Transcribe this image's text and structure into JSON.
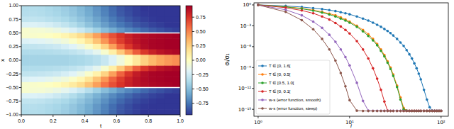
{
  "chart_data": [
    {
      "type": "heatmap",
      "xlabel": "t",
      "ylabel": "x",
      "xlim": [
        0,
        1
      ],
      "ylim": [
        -1,
        1
      ],
      "xticks": [
        {
          "value": 0,
          "label": "0.0"
        },
        {
          "value": 0.2,
          "label": "0.2"
        },
        {
          "value": 0.4,
          "label": "0.4"
        },
        {
          "value": 0.6,
          "label": "0.6"
        },
        {
          "value": 0.8,
          "label": "0.8"
        },
        {
          "value": 1,
          "label": "1.0"
        }
      ],
      "yticks": [
        {
          "value": -1,
          "label": "−1.00"
        },
        {
          "value": -0.75,
          "label": "−0.75"
        },
        {
          "value": -0.5,
          "label": "−0.50"
        },
        {
          "value": -0.25,
          "label": "−0.25"
        },
        {
          "value": 0,
          "label": "0.00"
        },
        {
          "value": 0.25,
          "label": "0.25"
        },
        {
          "value": 0.5,
          "label": "0.50"
        },
        {
          "value": 0.75,
          "label": "0.75"
        },
        {
          "value": 1,
          "label": "1.00"
        }
      ],
      "x": [
        0.025,
        0.075,
        0.125,
        0.175,
        0.225,
        0.275,
        0.325,
        0.375,
        0.425,
        0.475,
        0.525,
        0.575,
        0.625,
        0.675,
        0.725,
        0.775,
        0.825,
        0.875,
        0.925,
        0.975
      ],
      "y": [
        0.95,
        0.85,
        0.75,
        0.65,
        0.55,
        0.45,
        0.35,
        0.25,
        0.15,
        0.05,
        -0.05,
        -0.15,
        -0.25,
        -0.35,
        -0.45,
        -0.55,
        -0.65,
        -0.75,
        -0.85,
        -0.95
      ],
      "cells": [
        [
          -0.35,
          -0.35,
          -0.36,
          -0.38,
          -0.4,
          -0.43,
          -0.47,
          -0.52,
          -0.58,
          -0.65,
          -0.72,
          -0.79,
          -0.85,
          -0.89,
          -0.92,
          -0.95,
          -0.97,
          -0.98,
          -0.99,
          -1.0
        ],
        [
          -0.34,
          -0.34,
          -0.35,
          -0.37,
          -0.39,
          -0.42,
          -0.46,
          -0.51,
          -0.57,
          -0.64,
          -0.71,
          -0.78,
          -0.84,
          -0.88,
          -0.92,
          -0.94,
          -0.96,
          -0.98,
          -0.99,
          -0.99
        ],
        [
          -0.3,
          -0.3,
          -0.31,
          -0.33,
          -0.35,
          -0.38,
          -0.42,
          -0.47,
          -0.53,
          -0.6,
          -0.67,
          -0.74,
          -0.8,
          -0.85,
          -0.89,
          -0.92,
          -0.94,
          -0.96,
          -0.97,
          -0.98
        ],
        [
          -0.2,
          -0.2,
          -0.21,
          -0.23,
          -0.26,
          -0.3,
          -0.35,
          -0.41,
          -0.48,
          -0.55,
          -0.62,
          -0.69,
          -0.75,
          -0.8,
          -0.85,
          -0.88,
          -0.91,
          -0.93,
          -0.95,
          -0.96
        ],
        [
          -0.05,
          -0.06,
          -0.07,
          -0.09,
          -0.12,
          -0.16,
          -0.21,
          -0.27,
          -0.34,
          -0.42,
          -0.5,
          -0.57,
          -0.64,
          -0.7,
          -0.75,
          -0.8,
          -0.84,
          -0.87,
          -0.9,
          -0.92
        ],
        [
          -0.05,
          -0.04,
          -0.03,
          -0.01,
          0.02,
          0.06,
          0.12,
          0.2,
          0.3,
          0.42,
          0.55,
          0.66,
          0.75,
          0.82,
          0.87,
          0.9,
          0.92,
          0.93,
          0.94,
          0.95
        ],
        [
          -0.2,
          -0.19,
          -0.18,
          -0.16,
          -0.13,
          -0.09,
          -0.03,
          0.05,
          0.16,
          0.3,
          0.45,
          0.6,
          0.72,
          0.81,
          0.87,
          0.91,
          0.93,
          0.94,
          0.95,
          0.96
        ],
        [
          -0.3,
          -0.3,
          -0.29,
          -0.28,
          -0.26,
          -0.23,
          -0.19,
          -0.13,
          -0.04,
          0.08,
          0.24,
          0.42,
          0.6,
          0.74,
          0.84,
          0.9,
          0.93,
          0.94,
          0.95,
          0.96
        ],
        [
          -0.36,
          -0.36,
          -0.36,
          -0.35,
          -0.34,
          -0.33,
          -0.31,
          -0.28,
          -0.23,
          -0.16,
          -0.05,
          0.1,
          0.28,
          0.46,
          0.62,
          0.74,
          0.82,
          0.87,
          0.9,
          0.92
        ],
        [
          -0.4,
          -0.4,
          -0.4,
          -0.4,
          -0.4,
          -0.4,
          -0.39,
          -0.38,
          -0.36,
          -0.33,
          -0.28,
          -0.2,
          -0.1,
          0.02,
          0.14,
          0.25,
          0.34,
          0.4,
          0.44,
          0.47
        ],
        [
          -0.4,
          -0.4,
          -0.4,
          -0.4,
          -0.4,
          -0.4,
          -0.39,
          -0.38,
          -0.36,
          -0.33,
          -0.28,
          -0.2,
          -0.1,
          0.02,
          0.14,
          0.25,
          0.34,
          0.4,
          0.44,
          0.47
        ],
        [
          -0.36,
          -0.36,
          -0.36,
          -0.35,
          -0.34,
          -0.33,
          -0.31,
          -0.28,
          -0.23,
          -0.16,
          -0.05,
          0.1,
          0.28,
          0.46,
          0.62,
          0.74,
          0.82,
          0.87,
          0.9,
          0.92
        ],
        [
          -0.3,
          -0.3,
          -0.29,
          -0.28,
          -0.26,
          -0.23,
          -0.19,
          -0.13,
          -0.04,
          0.08,
          0.24,
          0.42,
          0.6,
          0.74,
          0.84,
          0.9,
          0.93,
          0.94,
          0.95,
          0.96
        ],
        [
          -0.2,
          -0.19,
          -0.18,
          -0.16,
          -0.13,
          -0.09,
          -0.03,
          0.05,
          0.16,
          0.3,
          0.45,
          0.6,
          0.72,
          0.81,
          0.87,
          0.91,
          0.93,
          0.94,
          0.95,
          0.96
        ],
        [
          -0.05,
          -0.04,
          -0.03,
          -0.01,
          0.02,
          0.06,
          0.12,
          0.2,
          0.3,
          0.42,
          0.55,
          0.66,
          0.75,
          0.82,
          0.87,
          0.9,
          0.92,
          0.93,
          0.94,
          0.95
        ],
        [
          -0.05,
          -0.06,
          -0.07,
          -0.09,
          -0.12,
          -0.16,
          -0.21,
          -0.27,
          -0.34,
          -0.42,
          -0.5,
          -0.57,
          -0.64,
          -0.7,
          -0.75,
          -0.8,
          -0.84,
          -0.87,
          -0.9,
          -0.92
        ],
        [
          -0.2,
          -0.2,
          -0.21,
          -0.23,
          -0.26,
          -0.3,
          -0.35,
          -0.41,
          -0.48,
          -0.55,
          -0.62,
          -0.69,
          -0.75,
          -0.8,
          -0.85,
          -0.88,
          -0.91,
          -0.93,
          -0.95,
          -0.96
        ],
        [
          -0.3,
          -0.3,
          -0.31,
          -0.33,
          -0.35,
          -0.38,
          -0.42,
          -0.47,
          -0.53,
          -0.6,
          -0.67,
          -0.74,
          -0.8,
          -0.85,
          -0.89,
          -0.92,
          -0.94,
          -0.96,
          -0.97,
          -0.98
        ],
        [
          -0.34,
          -0.34,
          -0.35,
          -0.37,
          -0.39,
          -0.42,
          -0.46,
          -0.51,
          -0.57,
          -0.64,
          -0.71,
          -0.78,
          -0.84,
          -0.88,
          -0.92,
          -0.94,
          -0.96,
          -0.98,
          -0.99,
          -0.99
        ],
        [
          -0.35,
          -0.35,
          -0.36,
          -0.38,
          -0.4,
          -0.43,
          -0.47,
          -0.52,
          -0.58,
          -0.65,
          -0.72,
          -0.79,
          -0.85,
          -0.89,
          -0.92,
          -0.95,
          -0.97,
          -0.98,
          -0.99,
          -1.0
        ]
      ],
      "colorbar": {
        "range": [
          -0.95,
          0.95
        ],
        "ticks": [
          {
            "value": -0.75,
            "label": "−0.75"
          },
          {
            "value": -0.5,
            "label": "−0.50"
          },
          {
            "value": -0.25,
            "label": "−0.25"
          },
          {
            "value": 0,
            "label": "0.00"
          },
          {
            "value": 0.25,
            "label": "0.25"
          },
          {
            "value": 0.5,
            "label": "0.50"
          },
          {
            "value": 0.75,
            "label": "0.75"
          }
        ]
      },
      "fronts": [
        {
          "x": [
            0.65,
            1.0
          ],
          "y": 0.5
        },
        {
          "x": [
            0.65,
            1.0
          ],
          "y": -0.5
        }
      ]
    },
    {
      "type": "line",
      "xlabel": "i",
      "ylabel": "σᵢ/σ₁",
      "log": true,
      "legend": "lower left",
      "marker": "circle",
      "xlim": [
        0.9,
        120
      ],
      "ylim": [
        1e-16,
        2
      ],
      "xticks": [
        {
          "value": 1,
          "label": "10⁰"
        },
        {
          "value": 10,
          "label": "10¹"
        },
        {
          "value": 100,
          "label": "10²"
        }
      ],
      "yticks": [
        {
          "value": 1e-15,
          "label": "10⁻¹⁵"
        },
        {
          "value": 1e-12,
          "label": "10⁻¹²"
        },
        {
          "value": 1e-09,
          "label": "10⁻⁹"
        },
        {
          "value": 1e-06,
          "label": "10⁻⁶"
        },
        {
          "value": 0.001,
          "label": "10⁻³"
        },
        {
          "value": 1,
          "label": "10⁰"
        }
      ],
      "x": [
        1,
        2,
        3,
        4,
        5,
        6,
        7,
        8,
        9,
        10,
        12,
        14,
        16,
        18,
        20,
        22,
        24,
        26,
        28,
        30,
        33,
        36,
        39,
        42,
        45,
        48,
        51,
        54,
        57,
        60,
        65,
        70,
        75,
        80,
        85,
        90,
        95,
        100
      ],
      "series": [
        {
          "name": "T ∈ [0, 1.6[",
          "color": "#1f77b4",
          "values": [
            1,
            0.71,
            0.5,
            0.35,
            0.25,
            0.18,
            0.13,
            0.089,
            0.063,
            0.045,
            0.022,
            0.011,
            0.0056,
            0.0028,
            0.0014,
            0.00071,
            0.00035,
            0.00018,
            8.9e-05,
            4e-05,
            1.3e-05,
            4e-06,
            1.3e-06,
            3.2e-07,
            7.9e-08,
            2e-08,
            4e-09,
            7.9e-10,
            1.3e-10,
            2e-11,
            6.3e-13,
            2.5e-14,
            2e-15,
            6.3e-16,
            6.1e-16,
            6e-16,
            6.2e-16,
            6e-16
          ]
        },
        {
          "name": "T ∈ [0, 0.5[",
          "color": "#ff7f0e",
          "values": [
            1,
            0.56,
            0.32,
            0.18,
            0.1,
            0.056,
            0.032,
            0.016,
            0.0079,
            0.004,
            0.001,
            0.00025,
            6.3e-05,
            1.3e-05,
            2.5e-06,
            4e-07,
            6.3e-08,
            7.9e-09,
            1e-09,
            1e-10,
            2.5e-12,
            5e-14,
            1.6e-15,
            6.3e-16,
            6.1e-16,
            6.1e-16,
            6.1e-16,
            6.1e-16,
            6.1e-16,
            6.1e-16,
            6.1e-16,
            6.1e-16,
            6.1e-16,
            6.1e-16,
            6.1e-16,
            6.1e-16,
            6.1e-16,
            6.1e-16
          ]
        },
        {
          "name": "T ∈ [0.5, 1.0[",
          "color": "#2ca02c",
          "values": [
            1,
            0.52,
            0.28,
            0.15,
            0.079,
            0.042,
            0.022,
            0.011,
            0.0056,
            0.0028,
            0.00071,
            0.00016,
            3.5e-05,
            7.9e-06,
            1.6e-06,
            2.5e-07,
            4e-08,
            5e-09,
            6.3e-10,
            6.3e-11,
            1.6e-12,
            2.5e-14,
            1e-15,
            6.3e-16,
            5.9e-16,
            5.9e-16,
            5.9e-16,
            5.9e-16,
            5.9e-16,
            5.9e-16,
            5.9e-16,
            5.9e-16,
            5.9e-16,
            5.9e-16,
            5.9e-16,
            5.9e-16,
            5.9e-16,
            5.9e-16
          ]
        },
        {
          "name": "T ∈ [0, 0.1[",
          "color": "#d62728",
          "values": [
            1,
            0.4,
            0.16,
            0.063,
            0.022,
            0.0079,
            0.0025,
            0.00079,
            0.00025,
            7.9e-05,
            6.3e-06,
            4e-07,
            2e-08,
            7.9e-10,
            2.5e-11,
            6.3e-13,
            1.3e-14,
            6.3e-16,
            5.8e-16,
            5.8e-16,
            5.8e-16,
            5.8e-16,
            5.8e-16,
            5.8e-16,
            5.8e-16,
            5.8e-16,
            5.8e-16,
            5.8e-16,
            5.8e-16,
            5.8e-16,
            5.8e-16,
            5.8e-16,
            5.8e-16,
            5.8e-16,
            5.8e-16,
            5.8e-16,
            5.8e-16,
            5.8e-16
          ]
        },
        {
          "name": "w-s (error function, smooth)",
          "color": "#9467bd",
          "values": [
            1,
            0.2,
            0.032,
            0.004,
            0.0005,
            5e-05,
            5e-06,
            4e-07,
            3.2e-08,
            2e-09,
            6.3e-12,
            1.6e-14,
            6.3e-16,
            6e-16,
            6e-16,
            6e-16,
            6e-16,
            6e-16,
            6e-16,
            6e-16,
            6e-16,
            6e-16,
            6e-16,
            6e-16,
            6e-16,
            6e-16,
            6e-16,
            6e-16,
            6e-16,
            6e-16,
            6e-16,
            6e-16,
            6e-16,
            6e-16,
            6e-16,
            6e-16,
            6e-16,
            6e-16
          ]
        },
        {
          "name": "w-s (error function, steep)",
          "color": "#8c564b",
          "values": [
            1,
            0.1,
            0.0063,
            0.00032,
            1.3e-05,
            4e-07,
            1e-08,
            1.6e-10,
            2e-12,
            2e-14,
            6.3e-16,
            5.7e-16,
            5.7e-16,
            5.7e-16,
            5.7e-16,
            5.7e-16,
            5.7e-16,
            5.7e-16,
            5.7e-16,
            5.7e-16,
            5.7e-16,
            5.7e-16,
            5.7e-16,
            5.7e-16,
            5.7e-16,
            5.7e-16,
            5.7e-16,
            5.7e-16,
            5.7e-16,
            5.7e-16,
            5.7e-16,
            5.7e-16,
            5.7e-16,
            5.7e-16,
            5.7e-16,
            5.7e-16,
            5.7e-16,
            5.7e-16
          ]
        }
      ]
    }
  ]
}
